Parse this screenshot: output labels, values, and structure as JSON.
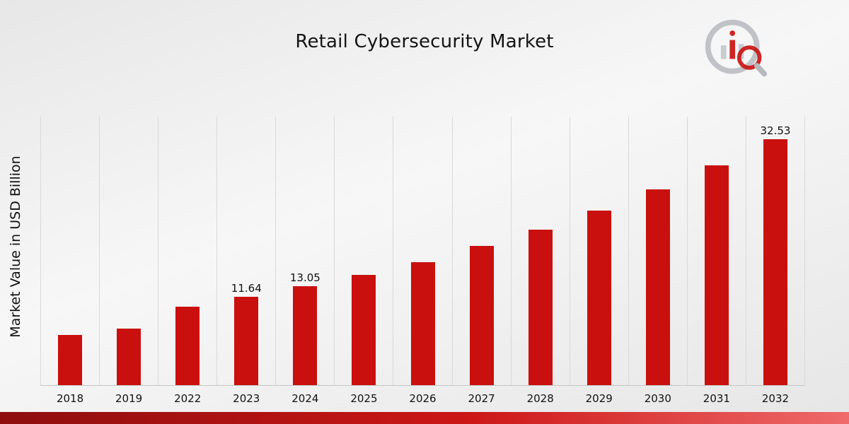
{
  "page": {
    "title": "Retail Cybersecurity Market",
    "ylabel": "Market Value in USD Billion"
  },
  "colors": {
    "bar": "#c9100e",
    "grid": "#d9d9d9",
    "axis": "#c6c6c6",
    "footer_left": "#8e0e0e",
    "footer_mid": "#cc1616",
    "footer_right": "#ef6a6a",
    "logo_gray": "#b6b9be",
    "logo_red": "#c9100e"
  },
  "chart_data": {
    "type": "bar",
    "title": "Retail Cybersecurity Market",
    "ylabel": "Market Value in USD Billion",
    "xlabel": "",
    "categories": [
      "2018",
      "2019",
      "2022",
      "2023",
      "2024",
      "2025",
      "2026",
      "2027",
      "2028",
      "2029",
      "2030",
      "2031",
      "2032"
    ],
    "values": [
      6.6,
      7.5,
      10.4,
      11.64,
      13.05,
      14.6,
      16.3,
      18.4,
      20.6,
      23.1,
      25.9,
      29.1,
      32.53
    ],
    "value_labels": [
      "",
      "",
      "",
      "11.64",
      "13.05",
      "",
      "",
      "",
      "",
      "",
      "",
      "",
      "32.53"
    ],
    "ylim": [
      0,
      35.5
    ],
    "grid": "vertical-only",
    "legend_position": "none",
    "bar_color": "#c9100e"
  }
}
